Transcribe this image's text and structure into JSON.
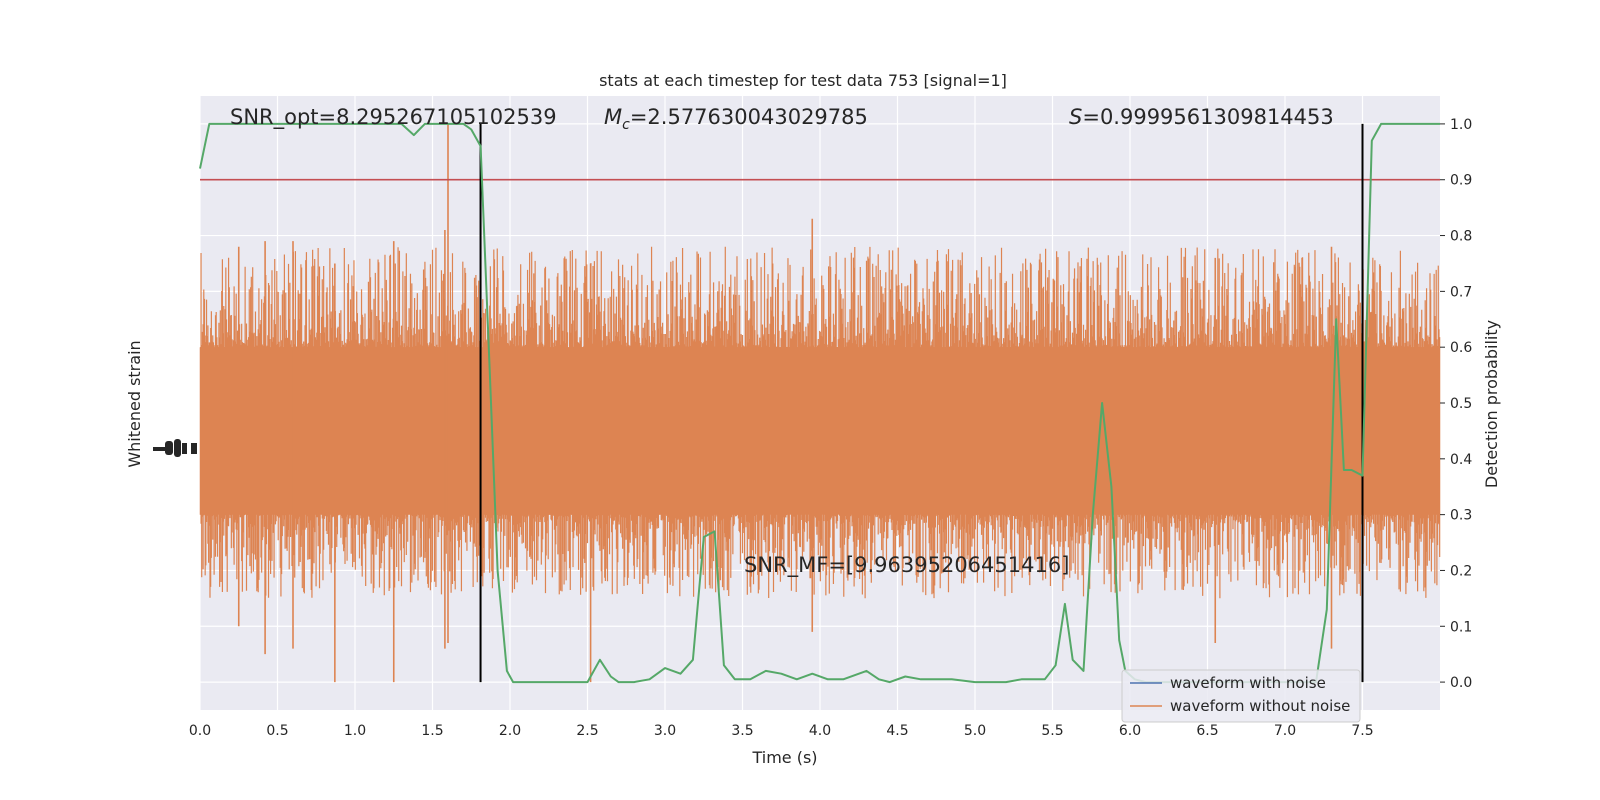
{
  "chart_data": {
    "type": "line",
    "title": "stats at each timestep for test data 753 [signal=1]",
    "xlabel": "Time (s)",
    "ylabel_left": "Whitened strain",
    "ylabel_right": "Detection probability",
    "xlim": [
      0.0,
      8.0
    ],
    "ylim_right": [
      -0.05,
      1.05
    ],
    "x_ticks": [
      "0.0",
      "0.5",
      "1.0",
      "1.5",
      "2.0",
      "2.5",
      "3.0",
      "3.5",
      "4.0",
      "4.5",
      "5.0",
      "5.5",
      "6.0",
      "6.5",
      "7.0",
      "7.5"
    ],
    "right_ticks": [
      "0.0",
      "0.1",
      "0.2",
      "0.3",
      "0.4",
      "0.5",
      "0.6",
      "0.7",
      "0.8",
      "0.9",
      "1.0"
    ],
    "left_tick_labels_overlapping": true,
    "grid": true,
    "legend_position": "bottom-right",
    "legend": [
      {
        "label": "waveform with noise",
        "color": "#4c72b0"
      },
      {
        "label": "waveform without noise",
        "color": "#dd8452"
      }
    ],
    "annotations": {
      "snr_opt": "SNR_opt=8.295267105102539",
      "mc_symbol": "M",
      "mc_subscript": "c",
      "mc_value": "=2.577630043029785",
      "s_symbol": "S",
      "s_value": "=0.9999561309814453",
      "snr_mf": "SNR_MF=[9.96395206451416]"
    },
    "threshold": {
      "value": 0.9,
      "color": "#c44e52"
    },
    "vertical_markers": [
      1.81,
      7.5
    ],
    "strain_band": {
      "color": "#dd8452",
      "dense_range_prob": [
        0.3,
        0.6
      ],
      "typical_peak_range_prob": [
        0.15,
        0.78
      ],
      "spike_times": [
        0.25,
        0.42,
        0.6,
        0.87,
        1.25,
        1.58,
        1.6,
        2.52,
        3.95,
        6.55,
        7.3
      ],
      "spike_tops": [
        0.78,
        0.79,
        0.79,
        0.75,
        0.79,
        0.81,
        1.0,
        0.75,
        0.83,
        0.76,
        0.78
      ],
      "spike_bottoms": [
        0.1,
        0.05,
        0.06,
        0.0,
        0.0,
        0.06,
        0.07,
        0.0,
        0.09,
        0.07,
        0.06
      ]
    },
    "probability_series": {
      "name": "",
      "color": "#55a868",
      "x": [
        0.0,
        0.06,
        0.12,
        0.5,
        1.0,
        1.2,
        1.3,
        1.38,
        1.45,
        1.5,
        1.6,
        1.7,
        1.75,
        1.81,
        1.87,
        1.92,
        1.98,
        2.02,
        2.07,
        2.15,
        2.25,
        2.4,
        2.5,
        2.58,
        2.65,
        2.7,
        2.8,
        2.9,
        3.0,
        3.1,
        3.18,
        3.25,
        3.32,
        3.38,
        3.45,
        3.55,
        3.65,
        3.75,
        3.85,
        3.95,
        4.05,
        4.15,
        4.3,
        4.38,
        4.45,
        4.55,
        4.65,
        4.75,
        4.85,
        5.0,
        5.2,
        5.3,
        5.45,
        5.52,
        5.58,
        5.63,
        5.7,
        5.76,
        5.82,
        5.88,
        5.93,
        5.97,
        6.03,
        6.1,
        6.3,
        6.6,
        6.9,
        7.1,
        7.2,
        7.27,
        7.33,
        7.38,
        7.43,
        7.5,
        7.56,
        7.62,
        7.7,
        7.8,
        8.0
      ],
      "y": [
        0.92,
        1.0,
        1.0,
        1.0,
        1.0,
        1.0,
        1.0,
        0.98,
        1.0,
        1.0,
        1.0,
        1.0,
        0.99,
        0.96,
        0.55,
        0.2,
        0.02,
        0.0,
        0.0,
        0.0,
        0.0,
        0.0,
        0.0,
        0.04,
        0.01,
        0.0,
        0.0,
        0.005,
        0.025,
        0.015,
        0.04,
        0.26,
        0.27,
        0.03,
        0.005,
        0.005,
        0.02,
        0.015,
        0.005,
        0.015,
        0.005,
        0.005,
        0.02,
        0.005,
        0.0,
        0.01,
        0.005,
        0.005,
        0.005,
        0.0,
        0.0,
        0.005,
        0.005,
        0.03,
        0.14,
        0.04,
        0.02,
        0.3,
        0.5,
        0.35,
        0.075,
        0.02,
        0.005,
        0.0,
        0.0,
        0.0,
        0.0,
        0.0,
        0.0,
        0.13,
        0.65,
        0.38,
        0.38,
        0.37,
        0.97,
        1.0,
        1.0,
        1.0,
        1.0
      ]
    }
  }
}
